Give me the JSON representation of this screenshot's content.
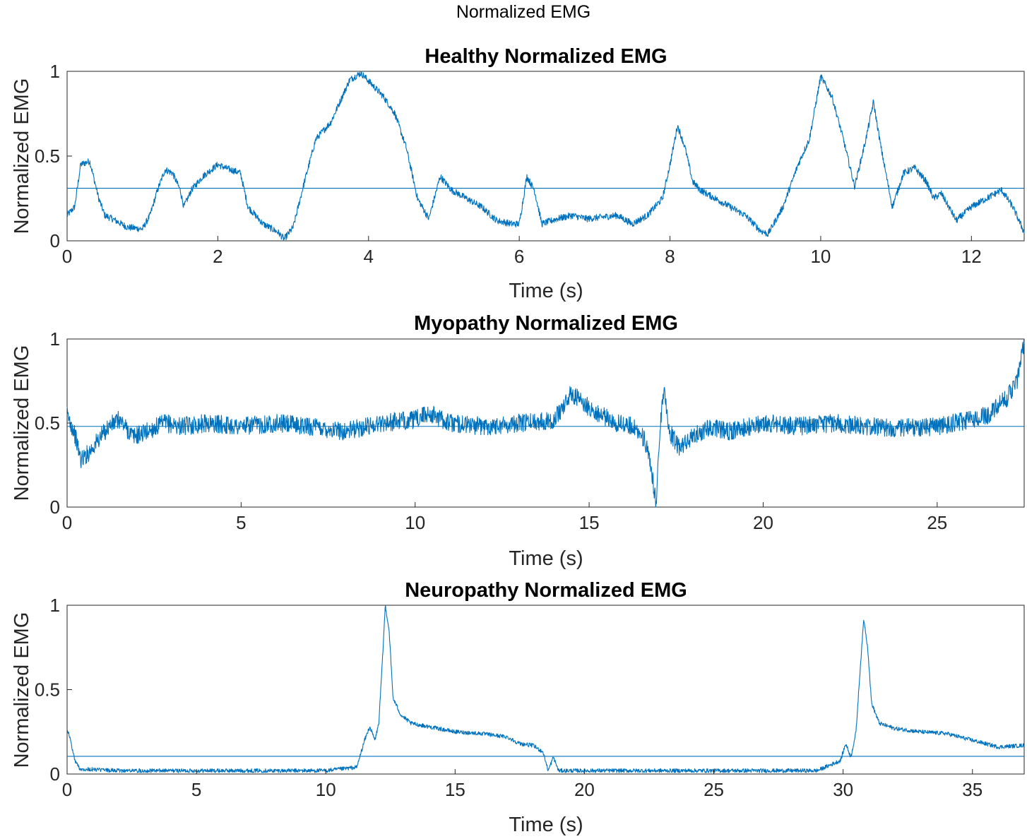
{
  "title": "Normalized EMG",
  "colors": {
    "line": "#0072bd",
    "axis": "#262626"
  },
  "chart_data": [
    {
      "type": "line",
      "title": "Healthy Normalized EMG",
      "xlabel": "Time (s)",
      "ylabel": "Normalized EMG",
      "xlim": [
        0,
        12.7
      ],
      "ylim": [
        0,
        1
      ],
      "xticks": [
        0,
        2,
        4,
        6,
        8,
        10,
        12
      ],
      "yticks": [
        0,
        0.5,
        1
      ],
      "grid": false,
      "mean_line": 0.31,
      "noise": 0.02,
      "series": [
        {
          "x": [
            0,
            0.1,
            0.18,
            0.3,
            0.42,
            0.5,
            0.6,
            0.8,
            1.0,
            1.1,
            1.2,
            1.3,
            1.4,
            1.5,
            1.55,
            1.65,
            1.8,
            2.0,
            2.1,
            2.3,
            2.4,
            2.6,
            2.8,
            2.88,
            3.0,
            3.15,
            3.3,
            3.5,
            3.65,
            3.75,
            3.9,
            4.05,
            4.2,
            4.35,
            4.5,
            4.65,
            4.8,
            4.95,
            5.1,
            5.3,
            5.5,
            5.7,
            5.9,
            6.0,
            6.1,
            6.2,
            6.3,
            6.5,
            6.7,
            6.9,
            7.1,
            7.3,
            7.5,
            7.7,
            7.9,
            8.0,
            8.1,
            8.2,
            8.3,
            8.4,
            8.6,
            8.8,
            9.0,
            9.2,
            9.3,
            9.4,
            9.5,
            9.7,
            9.85,
            10.0,
            10.15,
            10.3,
            10.45,
            10.6,
            10.7,
            10.8,
            10.95,
            11.1,
            11.25,
            11.4,
            11.5,
            11.6,
            11.8,
            12.0,
            12.2,
            12.4,
            12.55,
            12.7
          ],
          "values": [
            0.15,
            0.2,
            0.45,
            0.47,
            0.25,
            0.15,
            0.13,
            0.08,
            0.07,
            0.15,
            0.3,
            0.42,
            0.4,
            0.3,
            0.2,
            0.3,
            0.38,
            0.45,
            0.43,
            0.4,
            0.2,
            0.1,
            0.05,
            0.01,
            0.08,
            0.35,
            0.6,
            0.7,
            0.85,
            0.95,
            0.99,
            0.92,
            0.85,
            0.75,
            0.55,
            0.25,
            0.13,
            0.38,
            0.3,
            0.25,
            0.2,
            0.12,
            0.1,
            0.1,
            0.38,
            0.3,
            0.1,
            0.13,
            0.15,
            0.13,
            0.14,
            0.15,
            0.1,
            0.15,
            0.25,
            0.45,
            0.68,
            0.55,
            0.35,
            0.3,
            0.25,
            0.2,
            0.15,
            0.06,
            0.04,
            0.12,
            0.2,
            0.45,
            0.6,
            0.97,
            0.85,
            0.6,
            0.32,
            0.6,
            0.82,
            0.55,
            0.2,
            0.4,
            0.43,
            0.35,
            0.25,
            0.28,
            0.12,
            0.2,
            0.25,
            0.3,
            0.2,
            0.05
          ]
        }
      ]
    },
    {
      "type": "line",
      "title": "Myopathy Normalized EMG",
      "xlabel": "Time (s)",
      "ylabel": "Normalized EMG",
      "xlim": [
        0,
        27.5
      ],
      "ylim": [
        0,
        1
      ],
      "xticks": [
        0,
        5,
        10,
        15,
        20,
        25
      ],
      "yticks": [
        0,
        0.5,
        1
      ],
      "grid": false,
      "mean_line": 0.48,
      "noise": 0.055,
      "series": [
        {
          "x": [
            0,
            0.2,
            0.4,
            0.6,
            0.9,
            1.2,
            1.5,
            1.9,
            2.3,
            2.8,
            3.3,
            4.0,
            5.0,
            6.0,
            7.0,
            8.0,
            9.0,
            10.0,
            10.4,
            11.0,
            12.0,
            13.0,
            14.0,
            14.5,
            14.8,
            15.3,
            15.8,
            16.3,
            16.6,
            16.8,
            16.92,
            17.05,
            17.15,
            17.3,
            17.6,
            18.0,
            18.5,
            19.0,
            20.0,
            21.0,
            22.0,
            23.0,
            24.0,
            25.0,
            25.5,
            26.0,
            26.5,
            27.0,
            27.3,
            27.5
          ],
          "values": [
            0.55,
            0.45,
            0.28,
            0.32,
            0.4,
            0.48,
            0.52,
            0.42,
            0.45,
            0.5,
            0.48,
            0.5,
            0.48,
            0.5,
            0.48,
            0.45,
            0.5,
            0.52,
            0.56,
            0.5,
            0.48,
            0.5,
            0.52,
            0.68,
            0.62,
            0.55,
            0.5,
            0.48,
            0.4,
            0.2,
            0.02,
            0.5,
            0.73,
            0.45,
            0.35,
            0.42,
            0.48,
            0.45,
            0.5,
            0.48,
            0.5,
            0.48,
            0.47,
            0.48,
            0.5,
            0.52,
            0.55,
            0.65,
            0.75,
            0.98
          ]
        }
      ]
    },
    {
      "type": "line",
      "title": "Neuropathy Normalized EMG",
      "xlabel": "Time (s)",
      "ylabel": "Normalized EMG",
      "xlim": [
        0,
        37
      ],
      "ylim": [
        0,
        1
      ],
      "xticks": [
        0,
        5,
        10,
        15,
        20,
        25,
        30,
        35
      ],
      "yticks": [
        0,
        0.5,
        1
      ],
      "grid": false,
      "mean_line": 0.105,
      "noise": 0.012,
      "series": [
        {
          "x": [
            0,
            0.1,
            0.3,
            0.5,
            2,
            5,
            8,
            10,
            11.2,
            11.5,
            11.7,
            11.9,
            12.05,
            12.2,
            12.3,
            12.45,
            12.6,
            12.9,
            13.3,
            14,
            15,
            16,
            17,
            17.5,
            18,
            18.4,
            18.6,
            18.8,
            19,
            20,
            25,
            29,
            29.9,
            30.1,
            30.3,
            30.5,
            30.65,
            30.8,
            30.95,
            31.1,
            31.4,
            32,
            33,
            34,
            35,
            36,
            37
          ],
          "values": [
            0.27,
            0.22,
            0.08,
            0.03,
            0.02,
            0.02,
            0.02,
            0.02,
            0.04,
            0.2,
            0.28,
            0.2,
            0.3,
            0.7,
            1.0,
            0.85,
            0.45,
            0.35,
            0.3,
            0.28,
            0.25,
            0.24,
            0.22,
            0.18,
            0.17,
            0.13,
            0.02,
            0.1,
            0.02,
            0.02,
            0.02,
            0.02,
            0.08,
            0.18,
            0.1,
            0.25,
            0.6,
            0.92,
            0.75,
            0.42,
            0.3,
            0.27,
            0.25,
            0.24,
            0.2,
            0.16,
            0.17
          ]
        }
      ]
    }
  ]
}
